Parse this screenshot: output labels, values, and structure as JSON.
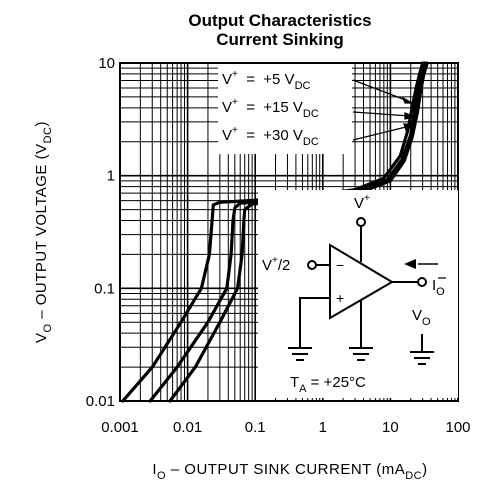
{
  "chart_data": {
    "type": "line",
    "title": "Output Characteristics",
    "subtitle": "Current Sinking",
    "xlabel": {
      "main": "I",
      "sub": "O",
      "rest": " – OUTPUT SINK CURRENT (mA",
      "sub2": "DC",
      "end": ")"
    },
    "ylabel": {
      "main": "V",
      "sub": "O",
      "rest": " – OUTPUT VOLTAGE (V",
      "sub2": "DC",
      "end": ")"
    },
    "x_scale": "log",
    "y_scale": "log",
    "xlim": [
      0.001,
      100
    ],
    "ylim": [
      0.01,
      10
    ],
    "x_ticks": [
      "0.001",
      "0.01",
      "0.1",
      "1",
      "10",
      "100"
    ],
    "y_ticks": [
      "0.01",
      "0.1",
      "1",
      "10"
    ],
    "grid": true,
    "series": [
      {
        "name": "V+ = +5 VDC",
        "label": {
          "pre": "V",
          "sup": "+",
          "mid": "  =  +5 V",
          "sub": "DC"
        },
        "x": [
          0.0011,
          0.003,
          0.008,
          0.016,
          0.021,
          0.023,
          0.024,
          0.03,
          0.3,
          3,
          8,
          14,
          18,
          21,
          24,
          27,
          30
        ],
        "y": [
          0.01,
          0.02,
          0.05,
          0.1,
          0.2,
          0.4,
          0.55,
          0.58,
          0.63,
          0.75,
          0.95,
          1.5,
          2.5,
          4,
          6,
          8,
          10
        ]
      },
      {
        "name": "V+ = +15 VDC",
        "label": {
          "pre": "V",
          "sup": "+",
          "mid": "  =  +15 V",
          "sub": "DC"
        },
        "x": [
          0.0028,
          0.007,
          0.02,
          0.038,
          0.044,
          0.047,
          0.05,
          0.06,
          0.4,
          3.5,
          9,
          15,
          20,
          23,
          26,
          29,
          32
        ],
        "y": [
          0.01,
          0.02,
          0.05,
          0.1,
          0.2,
          0.4,
          0.52,
          0.57,
          0.62,
          0.74,
          0.92,
          1.4,
          2.3,
          3.8,
          5.8,
          8,
          10
        ]
      },
      {
        "name": "V+ = +30 VDC",
        "label": {
          "pre": "V",
          "sup": "+",
          "mid": "  =  +30 V",
          "sub": "DC"
        },
        "x": [
          0.0055,
          0.013,
          0.03,
          0.055,
          0.064,
          0.068,
          0.07,
          0.09,
          0.5,
          4,
          10,
          16,
          21,
          25,
          28,
          31,
          35
        ],
        "y": [
          0.01,
          0.02,
          0.05,
          0.1,
          0.2,
          0.4,
          0.5,
          0.56,
          0.61,
          0.73,
          0.9,
          1.35,
          2.2,
          3.6,
          5.6,
          7.8,
          10
        ]
      }
    ]
  },
  "inset": {
    "supply_label": {
      "main": "V",
      "sup": "+"
    },
    "half_supply_label": {
      "main": "V",
      "sup": "+",
      "rest": "/2"
    },
    "minus_sign": "−",
    "plus_sign": "+",
    "current_label": {
      "main": "I",
      "sub": "O"
    },
    "voltage_label": {
      "main": "V",
      "sub": "O"
    },
    "temperature_label": {
      "main": "T",
      "sub": "A",
      "rest": " = +25°C"
    }
  },
  "colors": {
    "ink": "#000000",
    "background": "#ffffff"
  }
}
